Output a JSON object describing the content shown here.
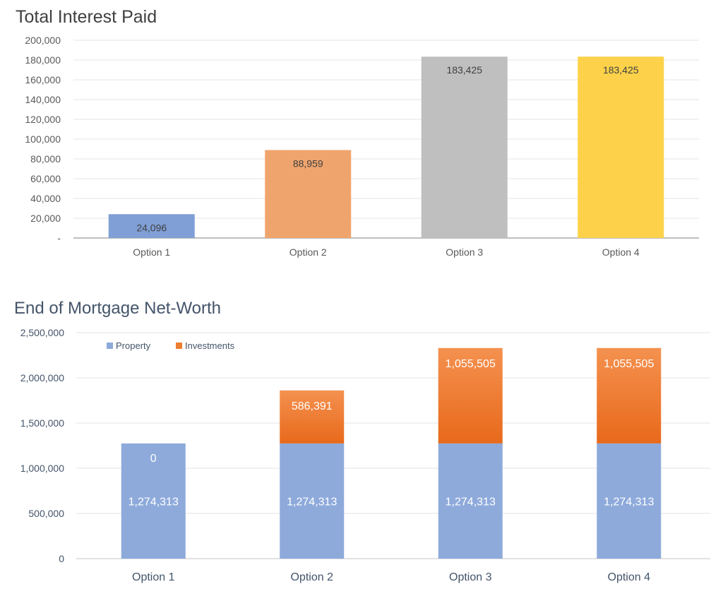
{
  "chart_data": [
    {
      "type": "bar",
      "title": "Total Interest Paid",
      "categories": [
        "Option 1",
        "Option 2",
        "Option 3",
        "Option 4"
      ],
      "values": [
        24096,
        88959,
        183425,
        183425
      ],
      "value_labels": [
        "24,096",
        "88,959",
        "183,425",
        "183,425"
      ],
      "bar_colors": [
        "#7f9fd6",
        "#f0a46d",
        "#bfbfbf",
        "#fdd24a"
      ],
      "ylim": [
        0,
        200000
      ],
      "yticks": [
        0,
        20000,
        40000,
        60000,
        80000,
        100000,
        120000,
        140000,
        160000,
        180000,
        200000
      ],
      "ytick_labels": [
        "-",
        "20,000",
        "40,000",
        "60,000",
        "80,000",
        "100,000",
        "120,000",
        "140,000",
        "160,000",
        "180,000",
        "200,000"
      ],
      "grid": true,
      "legend": "none"
    },
    {
      "type": "bar",
      "stacked": true,
      "title": "End of Mortgage Net-Worth",
      "categories": [
        "Option 1",
        "Option 2",
        "Option 3",
        "Option 4"
      ],
      "series": [
        {
          "name": "Property",
          "values": [
            1274313,
            1274313,
            1274313,
            1274313
          ],
          "labels": [
            "1,274,313",
            "1,274,313",
            "1,274,313",
            "1,274,313"
          ],
          "color": "#8eaadb"
        },
        {
          "name": "Investments",
          "values": [
            0,
            586391,
            1055505,
            1055505
          ],
          "labels": [
            "0",
            "586,391",
            "1,055,505",
            "1,055,505"
          ],
          "color": "#ed7d31"
        }
      ],
      "ylim": [
        0,
        2500000
      ],
      "yticks": [
        0,
        500000,
        1000000,
        1500000,
        2000000,
        2500000
      ],
      "ytick_labels": [
        "0",
        "500,000",
        "1,000,000",
        "1,500,000",
        "2,000,000",
        "2,500,000"
      ],
      "grid": true,
      "legend": "top-left"
    }
  ]
}
